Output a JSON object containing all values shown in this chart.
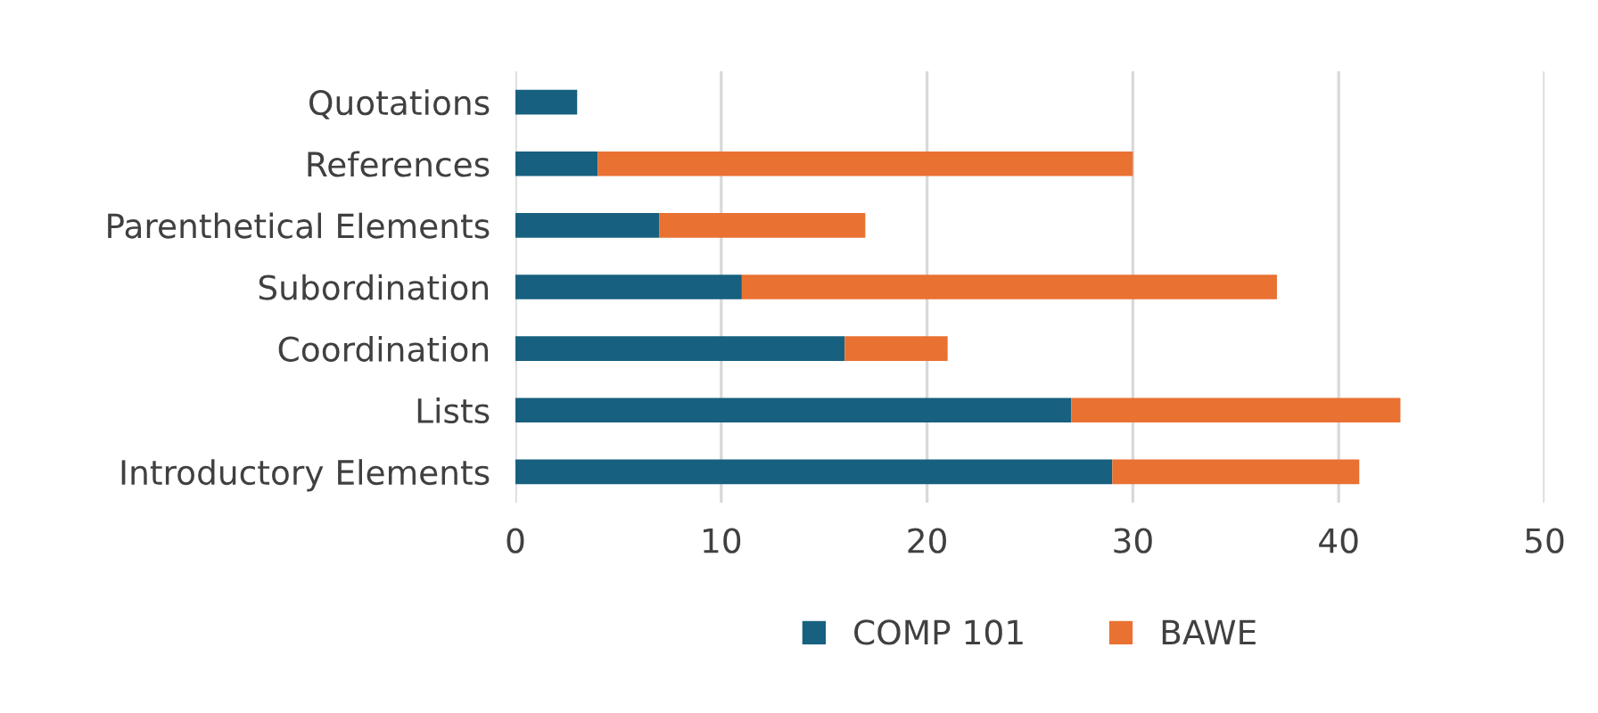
{
  "chart_data": {
    "type": "bar",
    "orientation": "horizontal",
    "stacked": true,
    "categories": [
      "Quotations",
      "References",
      "Parenthetical Elements",
      "Subordination",
      "Coordination",
      "Lists",
      "Introductory Elements"
    ],
    "series": [
      {
        "name": "COMP 101",
        "color": "#17607f",
        "values": [
          3,
          4,
          7,
          11,
          16,
          27,
          29
        ]
      },
      {
        "name": "BAWE",
        "color": "#e97132",
        "values": [
          0,
          26,
          10,
          26,
          5,
          16,
          12
        ]
      }
    ],
    "xlim": [
      0,
      50
    ],
    "xticks": [
      0,
      10,
      20,
      30,
      40,
      50
    ],
    "grid": "x",
    "legend": "bottom"
  }
}
